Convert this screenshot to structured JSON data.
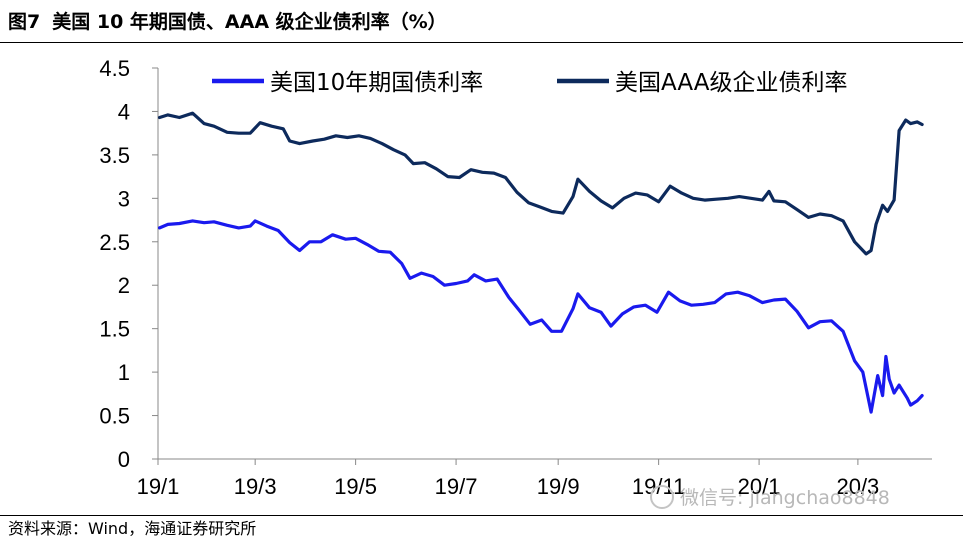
{
  "header": {
    "figure_label": "图7",
    "title": "美国 10 年期国债、AAA 级企业债利率（%）"
  },
  "footer": {
    "source": "资料来源：Wind，海通证券研究所"
  },
  "watermark": {
    "text": "微信号: jiangchao8848",
    "icon": "wechat-icon"
  },
  "chart_data": {
    "type": "line",
    "title": "美国 10 年期国债、AAA 级企业债利率（%）",
    "xlabel": "",
    "ylabel": "",
    "ylim": [
      0,
      4.5
    ],
    "yticks": [
      "0",
      "0.5",
      "1",
      "1.5",
      "2",
      "2.5",
      "3",
      "3.5",
      "4",
      "4.5"
    ],
    "xlim": [
      "2019-01-01",
      "2020-04-15"
    ],
    "xticks": [
      {
        "date": "2019-01-01",
        "label": "19/1"
      },
      {
        "date": "2019-03-01",
        "label": "19/3"
      },
      {
        "date": "2019-05-01",
        "label": "19/5"
      },
      {
        "date": "2019-07-01",
        "label": "19/7"
      },
      {
        "date": "2019-09-01",
        "label": "19/9"
      },
      {
        "date": "2019-11-01",
        "label": "19/11"
      },
      {
        "date": "2020-01-01",
        "label": "20/1"
      },
      {
        "date": "2020-03-01",
        "label": "20/3"
      }
    ],
    "legend_position": "top",
    "grid": false,
    "series": [
      {
        "name": "美国10年期国债利率",
        "color": "#1a1aee",
        "points": [
          [
            "2019-01-02",
            2.66
          ],
          [
            "2019-01-07",
            2.7
          ],
          [
            "2019-01-14",
            2.71
          ],
          [
            "2019-01-22",
            2.74
          ],
          [
            "2019-01-29",
            2.72
          ],
          [
            "2019-02-04",
            2.73
          ],
          [
            "2019-02-12",
            2.69
          ],
          [
            "2019-02-19",
            2.66
          ],
          [
            "2019-02-26",
            2.68
          ],
          [
            "2019-03-01",
            2.74
          ],
          [
            "2019-03-08",
            2.68
          ],
          [
            "2019-03-15",
            2.63
          ],
          [
            "2019-03-22",
            2.49
          ],
          [
            "2019-03-28",
            2.4
          ],
          [
            "2019-04-03",
            2.5
          ],
          [
            "2019-04-10",
            2.5
          ],
          [
            "2019-04-17",
            2.58
          ],
          [
            "2019-04-25",
            2.53
          ],
          [
            "2019-05-01",
            2.54
          ],
          [
            "2019-05-08",
            2.47
          ],
          [
            "2019-05-15",
            2.39
          ],
          [
            "2019-05-22",
            2.38
          ],
          [
            "2019-05-29",
            2.25
          ],
          [
            "2019-06-03",
            2.08
          ],
          [
            "2019-06-10",
            2.14
          ],
          [
            "2019-06-17",
            2.1
          ],
          [
            "2019-06-24",
            2.0
          ],
          [
            "2019-07-01",
            2.02
          ],
          [
            "2019-07-08",
            2.05
          ],
          [
            "2019-07-12",
            2.12
          ],
          [
            "2019-07-19",
            2.05
          ],
          [
            "2019-07-26",
            2.07
          ],
          [
            "2019-08-02",
            1.86
          ],
          [
            "2019-08-08",
            1.72
          ],
          [
            "2019-08-15",
            1.55
          ],
          [
            "2019-08-22",
            1.6
          ],
          [
            "2019-08-28",
            1.47
          ],
          [
            "2019-09-03",
            1.47
          ],
          [
            "2019-09-10",
            1.73
          ],
          [
            "2019-09-13",
            1.9
          ],
          [
            "2019-09-20",
            1.74
          ],
          [
            "2019-09-27",
            1.69
          ],
          [
            "2019-10-03",
            1.53
          ],
          [
            "2019-10-10",
            1.67
          ],
          [
            "2019-10-17",
            1.75
          ],
          [
            "2019-10-24",
            1.77
          ],
          [
            "2019-10-31",
            1.69
          ],
          [
            "2019-11-07",
            1.92
          ],
          [
            "2019-11-14",
            1.82
          ],
          [
            "2019-11-21",
            1.77
          ],
          [
            "2019-11-28",
            1.78
          ],
          [
            "2019-12-05",
            1.8
          ],
          [
            "2019-12-12",
            1.9
          ],
          [
            "2019-12-19",
            1.92
          ],
          [
            "2019-12-26",
            1.88
          ],
          [
            "2020-01-03",
            1.8
          ],
          [
            "2020-01-10",
            1.83
          ],
          [
            "2020-01-17",
            1.84
          ],
          [
            "2020-01-24",
            1.7
          ],
          [
            "2020-01-31",
            1.51
          ],
          [
            "2020-02-07",
            1.58
          ],
          [
            "2020-02-14",
            1.59
          ],
          [
            "2020-02-21",
            1.47
          ],
          [
            "2020-02-28",
            1.13
          ],
          [
            "2020-03-04",
            1.0
          ],
          [
            "2020-03-09",
            0.54
          ],
          [
            "2020-03-13",
            0.96
          ],
          [
            "2020-03-16",
            0.73
          ],
          [
            "2020-03-18",
            1.18
          ],
          [
            "2020-03-20",
            0.92
          ],
          [
            "2020-03-23",
            0.76
          ],
          [
            "2020-03-26",
            0.85
          ],
          [
            "2020-03-31",
            0.7
          ],
          [
            "2020-04-02",
            0.62
          ],
          [
            "2020-04-06",
            0.67
          ],
          [
            "2020-04-09",
            0.73
          ]
        ]
      },
      {
        "name": "美国AAA级企业债利率",
        "color": "#0d2a5c",
        "points": [
          [
            "2019-01-02",
            3.93
          ],
          [
            "2019-01-07",
            3.96
          ],
          [
            "2019-01-14",
            3.93
          ],
          [
            "2019-01-22",
            3.98
          ],
          [
            "2019-01-29",
            3.86
          ],
          [
            "2019-02-04",
            3.83
          ],
          [
            "2019-02-12",
            3.76
          ],
          [
            "2019-02-19",
            3.75
          ],
          [
            "2019-02-26",
            3.75
          ],
          [
            "2019-03-04",
            3.87
          ],
          [
            "2019-03-11",
            3.83
          ],
          [
            "2019-03-18",
            3.8
          ],
          [
            "2019-03-22",
            3.66
          ],
          [
            "2019-03-28",
            3.63
          ],
          [
            "2019-04-05",
            3.66
          ],
          [
            "2019-04-12",
            3.68
          ],
          [
            "2019-04-19",
            3.72
          ],
          [
            "2019-04-26",
            3.7
          ],
          [
            "2019-05-03",
            3.72
          ],
          [
            "2019-05-10",
            3.69
          ],
          [
            "2019-05-17",
            3.63
          ],
          [
            "2019-05-24",
            3.56
          ],
          [
            "2019-05-31",
            3.5
          ],
          [
            "2019-06-05",
            3.4
          ],
          [
            "2019-06-12",
            3.41
          ],
          [
            "2019-06-19",
            3.34
          ],
          [
            "2019-06-26",
            3.25
          ],
          [
            "2019-07-03",
            3.24
          ],
          [
            "2019-07-10",
            3.33
          ],
          [
            "2019-07-17",
            3.3
          ],
          [
            "2019-07-24",
            3.29
          ],
          [
            "2019-07-31",
            3.24
          ],
          [
            "2019-08-07",
            3.07
          ],
          [
            "2019-08-14",
            2.95
          ],
          [
            "2019-08-21",
            2.9
          ],
          [
            "2019-08-28",
            2.85
          ],
          [
            "2019-09-04",
            2.83
          ],
          [
            "2019-09-10",
            3.02
          ],
          [
            "2019-09-13",
            3.22
          ],
          [
            "2019-09-20",
            3.08
          ],
          [
            "2019-09-27",
            2.97
          ],
          [
            "2019-10-04",
            2.89
          ],
          [
            "2019-10-11",
            3.0
          ],
          [
            "2019-10-18",
            3.06
          ],
          [
            "2019-10-25",
            3.04
          ],
          [
            "2019-11-01",
            2.96
          ],
          [
            "2019-11-08",
            3.14
          ],
          [
            "2019-11-15",
            3.06
          ],
          [
            "2019-11-22",
            3.0
          ],
          [
            "2019-11-29",
            2.98
          ],
          [
            "2019-12-06",
            2.99
          ],
          [
            "2019-12-13",
            3.0
          ],
          [
            "2019-12-20",
            3.02
          ],
          [
            "2019-12-27",
            3.0
          ],
          [
            "2020-01-03",
            2.98
          ],
          [
            "2020-01-07",
            3.08
          ],
          [
            "2020-01-10",
            2.97
          ],
          [
            "2020-01-17",
            2.96
          ],
          [
            "2020-01-24",
            2.87
          ],
          [
            "2020-01-31",
            2.78
          ],
          [
            "2020-02-07",
            2.82
          ],
          [
            "2020-02-14",
            2.8
          ],
          [
            "2020-02-21",
            2.74
          ],
          [
            "2020-02-28",
            2.5
          ],
          [
            "2020-03-06",
            2.36
          ],
          [
            "2020-03-09",
            2.4
          ],
          [
            "2020-03-12",
            2.7
          ],
          [
            "2020-03-16",
            2.92
          ],
          [
            "2020-03-19",
            2.85
          ],
          [
            "2020-03-23",
            2.98
          ],
          [
            "2020-03-26",
            3.78
          ],
          [
            "2020-03-30",
            3.9
          ],
          [
            "2020-04-02",
            3.86
          ],
          [
            "2020-04-06",
            3.88
          ],
          [
            "2020-04-09",
            3.85
          ]
        ]
      }
    ]
  }
}
